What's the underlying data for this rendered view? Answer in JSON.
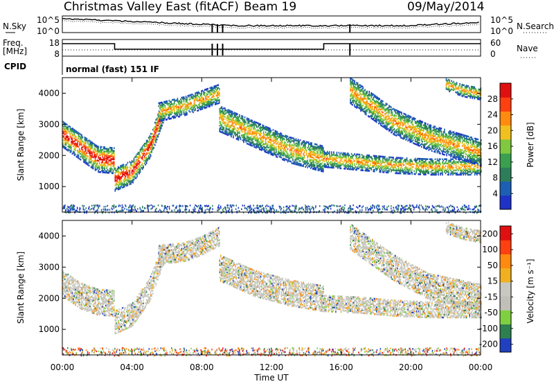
{
  "header": {
    "title": "Christmas Valley East (fitACF)",
    "beam": "Beam 19",
    "date": "09/May/2014"
  },
  "noise_panel": {
    "left_label": "N.Sky",
    "right_label": "N.Search",
    "left_ticks": [
      "10^5",
      "10^0"
    ],
    "right_ticks": [
      "10^5",
      "10^0"
    ]
  },
  "freq_panel": {
    "left_label_1": "Freq.",
    "left_label_2": "[MHz]",
    "right_label": "Nave",
    "left_ticks": [
      "18",
      "8"
    ],
    "right_ticks": [
      "60",
      "0"
    ]
  },
  "cpid": {
    "label": "CPID",
    "value": "normal (fast) 151 IF"
  },
  "x_axis": {
    "label": "Time UT",
    "ticks": [
      "00:00",
      "04:00",
      "08:00",
      "12:00",
      "16:00",
      "20:00",
      "00:00"
    ]
  },
  "chart_data": [
    {
      "type": "heatmap",
      "title": "",
      "ylabel": "Slant Range [km]",
      "xlabel": "Time UT",
      "ylim": [
        180,
        4500
      ],
      "yticks": [
        "1000",
        "2000",
        "3000",
        "4000"
      ],
      "xlim": [
        0,
        24
      ],
      "colorbar": {
        "label": "Power [dB]",
        "ticks": [
          "4",
          "8",
          "12",
          "16",
          "20",
          "24",
          "28"
        ],
        "range": [
          0,
          30
        ]
      },
      "bands": [
        {
          "t": [
            0,
            1,
            2,
            3
          ],
          "r": [
            2700,
            2300,
            1900,
            1850
          ],
          "w": 420
        },
        {
          "t": [
            3,
            4,
            5,
            5.8
          ],
          "r": [
            1250,
            1500,
            2300,
            3500
          ],
          "w": 380
        },
        {
          "t": [
            5.5,
            7,
            8,
            9
          ],
          "r": [
            3400,
            3600,
            3800,
            4000
          ],
          "w": 300
        },
        {
          "t": [
            9,
            11,
            13,
            15
          ],
          "r": [
            3200,
            2700,
            2200,
            1900
          ],
          "w": 420
        },
        {
          "t": [
            15,
            17,
            19,
            21,
            24
          ],
          "r": [
            1900,
            1800,
            1700,
            1650,
            1650
          ],
          "w": 260
        },
        {
          "t": [
            16.5,
            19,
            21,
            24
          ],
          "r": [
            4100,
            3100,
            2600,
            2100
          ],
          "w": 420
        },
        {
          "t": [
            22,
            23,
            24
          ],
          "r": [
            4300,
            4100,
            4000
          ],
          "w": 200
        }
      ]
    },
    {
      "type": "heatmap",
      "title": "",
      "ylabel": "Slant Range [km]",
      "xlabel": "Time UT",
      "ylim": [
        180,
        4500
      ],
      "yticks": [
        "1000",
        "2000",
        "3000",
        "4000"
      ],
      "xlim": [
        0,
        24
      ],
      "colorbar": {
        "label": "Velocity [m s⁻¹]",
        "ticks": [
          "200",
          "100",
          "50",
          "15",
          "-15",
          "-50",
          "-100",
          "-200"
        ],
        "range": [
          -250,
          250
        ]
      },
      "bands": [
        {
          "t": [
            0,
            1,
            2,
            3
          ],
          "r": [
            2500,
            2100,
            1900,
            1850
          ],
          "w": 420
        },
        {
          "t": [
            3,
            4,
            5,
            5.8
          ],
          "r": [
            1250,
            1500,
            2300,
            3500
          ],
          "w": 380
        },
        {
          "t": [
            5.5,
            7,
            8,
            9
          ],
          "r": [
            3400,
            3500,
            3700,
            4000
          ],
          "w": 300
        },
        {
          "t": [
            9,
            11,
            13,
            15
          ],
          "r": [
            3000,
            2500,
            2200,
            2000
          ],
          "w": 420
        },
        {
          "t": [
            15,
            17,
            19,
            21,
            24
          ],
          "r": [
            1850,
            1800,
            1700,
            1650,
            1650
          ],
          "w": 260
        },
        {
          "t": [
            16.5,
            19,
            21,
            24
          ],
          "r": [
            4000,
            3000,
            2400,
            2050
          ],
          "w": 420
        },
        {
          "t": [
            22,
            23,
            24
          ],
          "r": [
            4300,
            4100,
            4000
          ],
          "w": 200
        }
      ]
    }
  ],
  "colors": {
    "power_scale": [
      "#1e32c8",
      "#1c5fb4",
      "#2e7d5a",
      "#3aa050",
      "#7fc840",
      "#f0c020",
      "#ff8a10",
      "#ff4010",
      "#e01010"
    ],
    "velocity_scale": [
      "#e01010",
      "#ff4010",
      "#ff8a10",
      "#f0b020",
      "#c8c8c0",
      "#c0c0b8",
      "#7fd040",
      "#2e8050",
      "#2040c0"
    ]
  }
}
